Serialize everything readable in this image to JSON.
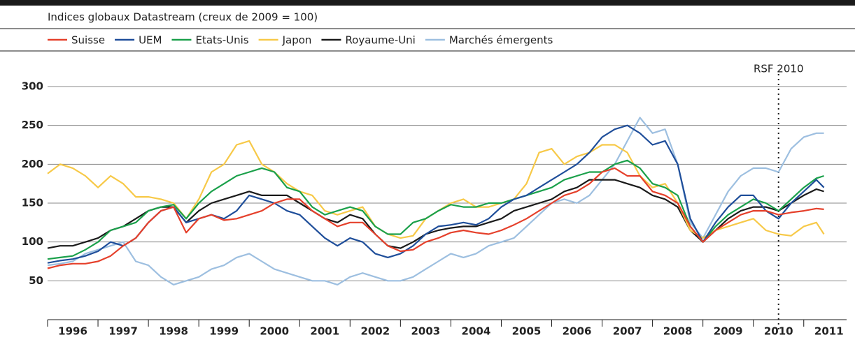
{
  "chart_data": {
    "type": "line",
    "subtitle": "Indices globaux Datastream (creux de 2009 = 100)",
    "x": [
      1996,
      1996.25,
      1996.5,
      1996.75,
      1997,
      1997.25,
      1997.5,
      1997.75,
      1998,
      1998.25,
      1998.5,
      1998.75,
      1999,
      1999.25,
      1999.5,
      1999.75,
      2000,
      2000.25,
      2000.5,
      2000.75,
      2001,
      2001.25,
      2001.5,
      2001.75,
      2002,
      2002.25,
      2002.5,
      2002.75,
      2003,
      2003.25,
      2003.5,
      2003.75,
      2004,
      2004.25,
      2004.5,
      2004.75,
      2005,
      2005.25,
      2005.5,
      2005.75,
      2006,
      2006.25,
      2006.5,
      2006.75,
      2007,
      2007.25,
      2007.5,
      2007.75,
      2008,
      2008.25,
      2008.5,
      2008.75,
      2009,
      2009.25,
      2009.5,
      2009.75,
      2010,
      2010.25,
      2010.5,
      2010.75,
      2011,
      2011.25,
      2011.4
    ],
    "series": [
      {
        "name": "Suisse",
        "color": "#e5402b",
        "values": [
          66,
          70,
          72,
          72,
          75,
          82,
          95,
          105,
          125,
          140,
          145,
          112,
          130,
          135,
          128,
          130,
          135,
          140,
          150,
          155,
          155,
          140,
          130,
          120,
          125,
          125,
          110,
          95,
          88,
          90,
          100,
          105,
          112,
          115,
          112,
          110,
          115,
          122,
          130,
          140,
          150,
          160,
          165,
          175,
          190,
          195,
          185,
          185,
          165,
          160,
          150,
          120,
          100,
          115,
          125,
          135,
          140,
          140,
          135,
          138,
          140,
          143,
          142
        ]
      },
      {
        "name": "UEM",
        "color": "#1f4e9a",
        "values": [
          73,
          76,
          78,
          82,
          88,
          100,
          95,
          105,
          125,
          140,
          145,
          125,
          130,
          135,
          130,
          140,
          160,
          155,
          150,
          140,
          135,
          120,
          105,
          95,
          105,
          100,
          85,
          80,
          85,
          95,
          110,
          120,
          122,
          125,
          122,
          130,
          145,
          155,
          160,
          170,
          180,
          190,
          200,
          215,
          235,
          245,
          250,
          240,
          225,
          230,
          200,
          130,
          100,
          125,
          145,
          160,
          160,
          140,
          130,
          150,
          165,
          180,
          170
        ]
      },
      {
        "name": "Etats-Unis",
        "color": "#1aa04a",
        "values": [
          78,
          80,
          82,
          90,
          100,
          115,
          120,
          125,
          140,
          145,
          148,
          130,
          150,
          165,
          175,
          185,
          190,
          195,
          190,
          170,
          165,
          145,
          135,
          140,
          145,
          140,
          120,
          110,
          110,
          125,
          130,
          140,
          148,
          145,
          145,
          150,
          150,
          155,
          160,
          165,
          170,
          180,
          185,
          190,
          190,
          200,
          205,
          195,
          175,
          170,
          160,
          120,
          100,
          120,
          135,
          145,
          155,
          150,
          140,
          155,
          170,
          182,
          185
        ]
      },
      {
        "name": "Japon",
        "color": "#f7c948",
        "values": [
          188,
          200,
          195,
          185,
          170,
          185,
          175,
          158,
          158,
          155,
          150,
          130,
          155,
          190,
          200,
          225,
          230,
          200,
          190,
          175,
          165,
          160,
          140,
          135,
          140,
          145,
          120,
          110,
          105,
          108,
          130,
          140,
          150,
          155,
          145,
          145,
          150,
          155,
          175,
          215,
          220,
          200,
          210,
          215,
          225,
          225,
          215,
          185,
          170,
          175,
          150,
          115,
          105,
          115,
          120,
          125,
          130,
          115,
          110,
          108,
          120,
          125,
          110
        ]
      },
      {
        "name": "Royaume-Uni",
        "color": "#1a1a1a",
        "values": [
          92,
          95,
          95,
          100,
          105,
          115,
          120,
          130,
          140,
          145,
          145,
          125,
          140,
          150,
          155,
          160,
          165,
          160,
          160,
          160,
          150,
          140,
          130,
          125,
          135,
          130,
          110,
          95,
          92,
          100,
          110,
          115,
          118,
          120,
          120,
          125,
          130,
          140,
          145,
          150,
          155,
          165,
          170,
          180,
          180,
          180,
          175,
          170,
          160,
          155,
          145,
          115,
          100,
          115,
          130,
          140,
          145,
          145,
          140,
          150,
          160,
          168,
          165
        ]
      },
      {
        "name": "Marchés émergents",
        "color": "#9dbfe0",
        "values": [
          70,
          72,
          75,
          85,
          90,
          95,
          100,
          75,
          70,
          55,
          45,
          50,
          55,
          65,
          70,
          80,
          85,
          75,
          65,
          60,
          55,
          50,
          50,
          45,
          55,
          60,
          55,
          50,
          50,
          55,
          65,
          75,
          85,
          80,
          85,
          95,
          100,
          105,
          120,
          135,
          150,
          155,
          150,
          160,
          180,
          200,
          230,
          260,
          240,
          245,
          200,
          125,
          105,
          135,
          165,
          185,
          195,
          195,
          190,
          220,
          235,
          240,
          240
        ]
      }
    ],
    "year_labels": [
      1996,
      1997,
      1998,
      1999,
      2000,
      2001,
      2002,
      2003,
      2004,
      2005,
      2006,
      2007,
      2008,
      2009,
      2010,
      2011
    ],
    "xlim": [
      1996,
      2011.85
    ],
    "ylim": [
      0,
      300
    ],
    "yticks": [
      50,
      100,
      150,
      200,
      250,
      300
    ],
    "grid": true,
    "annotations": [
      {
        "text": "RSF 2010",
        "x": 2010.5
      }
    ]
  }
}
